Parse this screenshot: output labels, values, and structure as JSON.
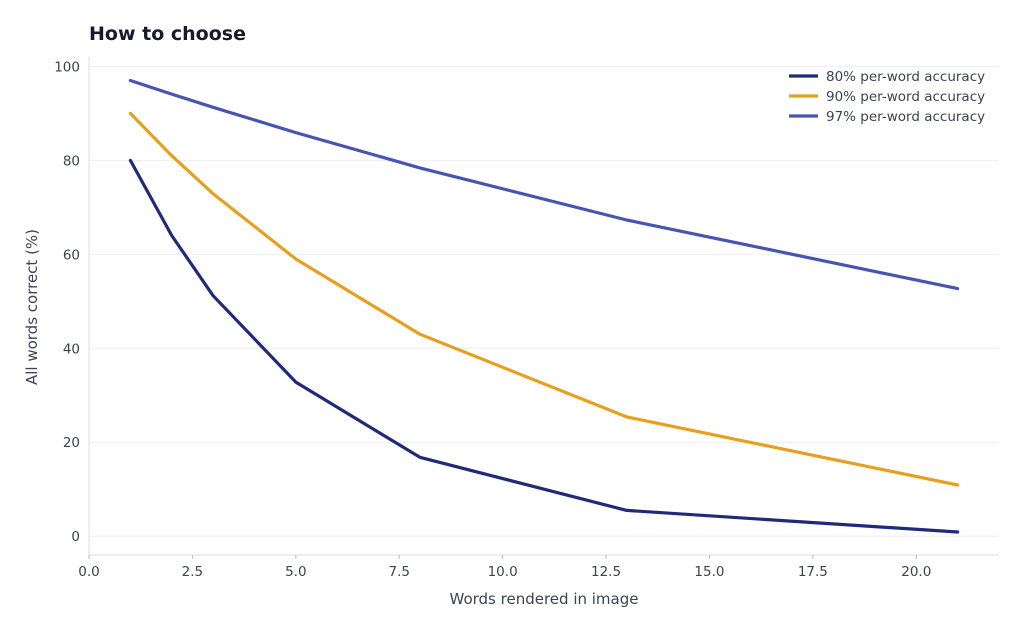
{
  "chart_data": {
    "type": "line",
    "title": "How to choose",
    "xlabel": "Words rendered in image",
    "ylabel": "All words correct (%)",
    "xlim": [
      0,
      22
    ],
    "ylim": [
      -4,
      102
    ],
    "xticks": [
      0.0,
      2.5,
      5.0,
      7.5,
      10.0,
      12.5,
      15.0,
      17.5,
      20.0
    ],
    "xtick_labels": [
      "0.0",
      "2.5",
      "5.0",
      "7.5",
      "10.0",
      "12.5",
      "15.0",
      "17.5",
      "20.0"
    ],
    "yticks": [
      0,
      20,
      40,
      60,
      80,
      100
    ],
    "ytick_labels": [
      "0",
      "20",
      "40",
      "60",
      "80",
      "100"
    ],
    "grid": "horizontal",
    "legend": "top-right",
    "x": [
      1,
      2,
      3,
      5,
      8,
      13,
      21
    ],
    "series": [
      {
        "name": "80% per-word accuracy",
        "color": "#1f2a78",
        "values": [
          80,
          64,
          51.2,
          32.8,
          16.8,
          5.5,
          0.9
        ]
      },
      {
        "name": "90% per-word accuracy",
        "color": "#e6a01e",
        "values": [
          90,
          81,
          72.9,
          59.0,
          43.0,
          25.4,
          10.9
        ]
      },
      {
        "name": "97% per-word accuracy",
        "color": "#4655b0",
        "values": [
          97,
          94.1,
          91.3,
          85.9,
          78.4,
          67.3,
          52.7
        ]
      }
    ]
  }
}
